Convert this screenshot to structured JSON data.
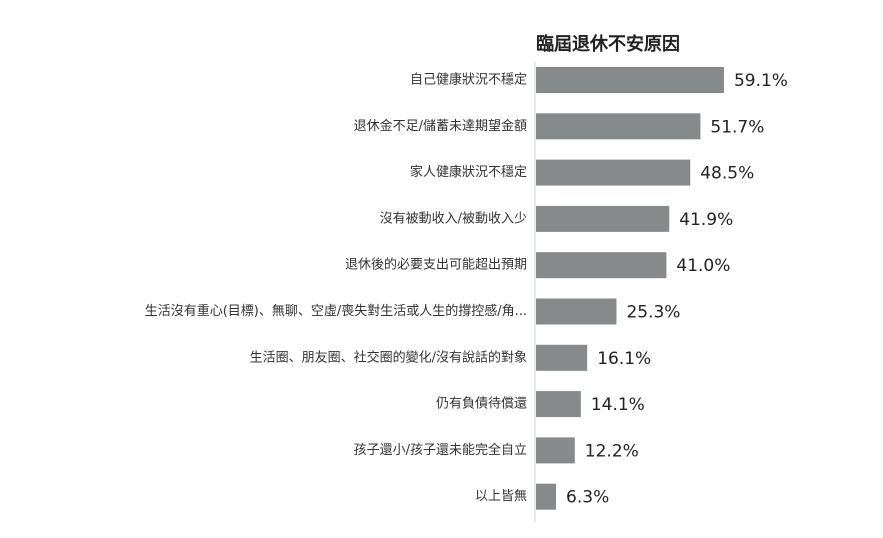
{
  "chart_data": {
    "type": "bar",
    "orientation": "horizontal",
    "title": "臨屆退休不安原因",
    "categories": [
      "自己健康狀況不穩定",
      "退休金不足/儲蓄未達期望金額",
      "家人健康狀況不穩定",
      "沒有被動收入/被動收入少",
      "退休後的必要支出可能超出預期",
      "生活沒有重心(目標)、無聊、空虛/喪失對生活或人生的撐控感/角...",
      "生活圈、朋友圈、社交圈的變化/沒有說話的對象",
      "仍有負債待償還",
      "孩子還小/孩子還未能完全自立",
      "以上皆無"
    ],
    "values": [
      59.1,
      51.7,
      48.5,
      41.9,
      41.0,
      25.3,
      16.1,
      14.1,
      12.2,
      6.3
    ],
    "value_labels": [
      "59.1%",
      "51.7%",
      "48.5%",
      "41.9%",
      "41.0%",
      "25.3%",
      "16.1%",
      "14.1%",
      "12.2%",
      "6.3%"
    ],
    "xlim": [
      0,
      100
    ],
    "grid": false,
    "legend": "none",
    "bar_color": "#878a8b",
    "axis_color": "#d4d4d4"
  }
}
